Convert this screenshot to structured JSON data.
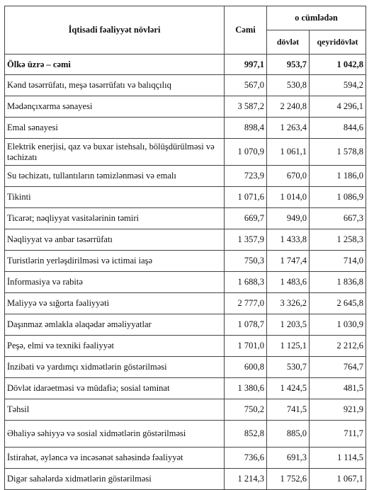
{
  "header": {
    "activity": "İqtisadi fəaliyyət növləri",
    "total": "Cəmi",
    "including": "o cümlədən",
    "state": "dövlət",
    "nonstate": "qeyridövlət"
  },
  "rows": [
    {
      "name": "Ölkə üzrə – cəmi",
      "total": "997,1",
      "state": "953,7",
      "nonstate": "1 042,8"
    },
    {
      "name": "Kənd təsərrüfatı, meşə təsərrüfatı və balıqçılıq",
      "total": "567,0",
      "state": "530,8",
      "nonstate": "594,2"
    },
    {
      "name": "Mədənçıxarma sənayesi",
      "total": "3 587,2",
      "state": "2 240,8",
      "nonstate": "4 296,1"
    },
    {
      "name": "Emal sənayesi",
      "total": "898,4",
      "state": "1 263,4",
      "nonstate": "844,6"
    },
    {
      "name": "Elektrik enerjisi, qaz və buxar istehsalı, bölüşdürülməsi və təchizatı",
      "total": "1 070,9",
      "state": "1 061,1",
      "nonstate": "1 578,8"
    },
    {
      "name": "Su təchizatı, tullantıların təmizlənməsi və emalı",
      "total": "723,9",
      "state": "670,0",
      "nonstate": "1 186,0"
    },
    {
      "name": "Tikinti",
      "total": "1 071,6",
      "state": "1 014,0",
      "nonstate": "1 086,9"
    },
    {
      "name": "Ticarət; nəqliyyat vasitələrinin təmiri",
      "total": "669,7",
      "state": "949,0",
      "nonstate": "667,3"
    },
    {
      "name": "Nəqliyyat və anbar təsərrüfatı",
      "total": "1 357,9",
      "state": "1 433,8",
      "nonstate": "1 258,3"
    },
    {
      "name": "Turistlərin yerləşdirilməsi və ictimai iaşə",
      "total": "750,3",
      "state": "1 747,4",
      "nonstate": "714,0"
    },
    {
      "name": "İnformasiya və rabitə",
      "total": "1 688,3",
      "state": "1 483,6",
      "nonstate": "1 836,8"
    },
    {
      "name": "Maliyyə və sığorta fəaliyyəti",
      "total": "2 777,0",
      "state": "3 326,2",
      "nonstate": "2 645,8"
    },
    {
      "name": "Daşınmaz əmlakla əlaqədar əməliyyatlar",
      "total": "1 078,7",
      "state": "1 203,5",
      "nonstate": "1 030,9"
    },
    {
      "name": "Peşə, elmi və texniki fəaliyyət",
      "total": "1 701,0",
      "state": "1 125,1",
      "nonstate": "2 212,6"
    },
    {
      "name": "İnzibati və yardımçı xidmətlərin göstərilməsi",
      "total": "600,8",
      "state": "530,7",
      "nonstate": "764,7"
    },
    {
      "name": "Dövlət idarəetməsi və müdafiə; sosial təminat",
      "total": "1 380,6",
      "state": "1 424,5",
      "nonstate": "481,5"
    },
    {
      "name": "Təhsil",
      "total": "750,2",
      "state": "741,5",
      "nonstate": "921,9"
    },
    {
      "name": "Əhaliyə səhiyyə və sosial xidmətlərin göstərilməsi",
      "total": "852,8",
      "state": "885,0",
      "nonstate": "711,7"
    },
    {
      "name": "İstirahət, əyləncə və incəsənət sahəsində fəaliyyət",
      "total": "736,6",
      "state": "691,3",
      "nonstate": "1 114,5"
    },
    {
      "name": "Digər sahələrdə xidmətlərin göstərilməsi",
      "total": "1 214,3",
      "state": "1 752,6",
      "nonstate": "1 067,1"
    }
  ]
}
